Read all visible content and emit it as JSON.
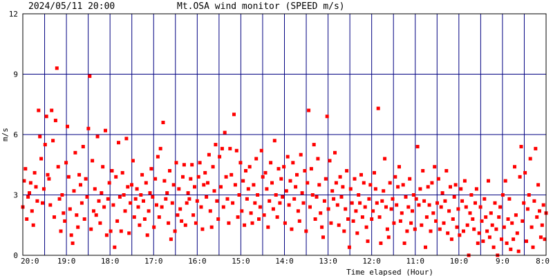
{
  "header": {
    "timestamp": "2024/05/11 20:00",
    "title": "Mt.OSA wind monitor (SPEED m/s)"
  },
  "chart_data": {
    "type": "scatter",
    "title": "Mt.OSA wind monitor (SPEED m/s)",
    "xlabel": "Time elapsed (Hour)",
    "ylabel": "m/s",
    "x_ticks": [
      "20:0",
      "19:0",
      "18:0",
      "17:0",
      "16:0",
      "15:0",
      "14:0",
      "13:0",
      "12:0",
      "11:0",
      "10:0",
      "9:0",
      "8:0"
    ],
    "y_ticks": [
      "0",
      "3",
      "6",
      "9",
      "12"
    ],
    "xlim": [
      0,
      12
    ],
    "ylim": [
      0,
      12
    ],
    "grid": true,
    "colors": {
      "points": "#ff0000",
      "grid": "#000080",
      "axis": "#000000"
    },
    "series": [
      {
        "values": [
          2.4,
          3.7,
          4.3,
          1.8,
          2.9,
          3.1,
          3.6,
          2.2,
          1.5,
          4.1,
          3.4,
          2.7,
          7.2,
          5.9,
          4.8,
          2.6,
          3.3,
          5.5,
          6.9,
          4.0,
          3.8,
          2.5,
          7.2,
          5.7,
          1.9,
          6.7,
          9.3,
          4.4,
          2.8,
          1.2,
          3.0,
          2.1,
          1.7,
          4.6,
          6.4,
          3.9,
          2.3,
          1.0,
          0.6,
          3.2,
          5.1,
          2.0,
          1.4,
          4.0,
          3.5,
          2.6,
          5.4,
          1.8,
          3.8,
          2.9,
          6.3,
          8.9,
          1.3,
          4.7,
          2.2,
          3.3,
          2.0,
          5.9,
          2.7,
          1.6,
          3.1,
          4.4,
          2.4,
          6.2,
          1.0,
          2.8,
          3.6,
          1.2,
          4.2,
          2.5,
          0.4,
          3.9,
          1.7,
          5.6,
          2.9,
          1.2,
          4.1,
          3.0,
          2.2,
          5.8,
          3.4,
          1.1,
          2.6,
          3.5,
          4.7,
          1.9,
          2.8,
          3.3,
          2.4,
          1.5,
          3.0,
          4.0,
          2.7,
          1.8,
          3.6,
          1.0,
          2.2,
          3.1,
          4.3,
          2.9,
          1.4,
          3.8,
          2.5,
          4.9,
          1.9,
          5.3,
          2.4,
          6.6,
          3.7,
          2.8,
          3.1,
          1.6,
          4.2,
          0.8,
          2.6,
          3.5,
          1.2,
          4.6,
          2.0,
          3.3,
          2.3,
          1.7,
          3.9,
          4.5,
          1.5,
          2.6,
          3.1,
          2.8,
          3.8,
          4.5,
          2.0,
          3.4,
          1.6,
          2.7,
          3.9,
          4.6,
          2.4,
          1.3,
          3.5,
          4.1,
          2.9,
          3.6,
          5.0,
          2.2,
          1.4,
          4.4,
          3.2,
          5.5,
          2.7,
          1.8,
          4.9,
          3.4,
          5.3,
          2.4,
          6.1,
          3.9,
          2.8,
          1.6,
          5.3,
          4.0,
          2.6,
          7.0,
          3.5,
          5.2,
          1.9,
          3.0,
          4.6,
          2.2,
          3.7,
          1.5,
          4.2,
          2.8,
          3.3,
          4.4,
          2.1,
          1.6,
          3.5,
          2.6,
          4.8,
          3.0,
          1.8,
          2.4,
          5.2,
          3.9,
          2.0,
          4.1,
          3.3,
          1.4,
          2.7,
          4.6,
          3.6,
          2.3,
          5.7,
          3.0,
          1.9,
          4.3,
          2.6,
          3.8,
          2.9,
          4.4,
          1.6,
          3.2,
          4.9,
          2.5,
          3.7,
          1.3,
          4.6,
          2.8,
          3.4,
          4.0,
          2.2,
          1.7,
          5.0,
          3.1,
          2.6,
          4.2,
          1.2,
          3.6,
          7.2,
          2.4,
          4.3,
          3.0,
          5.5,
          1.8,
          2.9,
          4.8,
          3.5,
          2.1,
          1.4,
          0.9,
          2.7,
          3.8,
          6.9,
          2.3,
          4.7,
          1.6,
          3.2,
          2.8,
          5.1,
          3.6,
          2.5,
          1.5,
          3.9,
          2.9,
          3.4,
          1.2,
          2.3,
          4.2,
          1.8,
          0.4,
          3.3,
          2.6,
          1.7,
          3.8,
          2.2,
          1.1,
          3.0,
          2.6,
          4.0,
          1.9,
          3.6,
          2.4,
          1.4,
          0.7,
          2.8,
          3.5,
          1.8,
          2.2,
          4.1,
          3.3,
          2.6,
          7.3,
          1.9,
          0.6,
          2.7,
          3.2,
          4.8,
          2.4,
          1.3,
          0.9,
          3.6,
          2.3,
          2.8,
          1.6,
          3.9,
          2.5,
          3.4,
          4.4,
          1.7,
          2.1,
          3.5,
          0.6,
          2.9,
          1.2,
          2.4,
          3.8,
          1.6,
          2.2,
          3.0,
          1.3,
          2.8,
          5.4,
          2.5,
          3.3,
          1.5,
          4.2,
          2.7,
          0.4,
          1.9,
          3.4,
          2.5,
          1.2,
          3.6,
          2.1,
          4.4,
          1.7,
          2.6,
          3.8,
          1.3,
          2.4,
          3.1,
          1.6,
          2.7,
          4.2,
          1.1,
          2.2,
          3.4,
          0.8,
          1.8,
          2.9,
          3.5,
          1.4,
          2.3,
          1.0,
          3.3,
          2.7,
          1.2,
          3.7,
          2.4,
          1.5,
          0.0,
          2.1,
          3.0,
          1.8,
          1.3,
          2.6,
          3.3,
          0.6,
          1.1,
          2.4,
          1.7,
          0.7,
          2.8,
          1.9,
          1.2,
          3.7,
          0.9,
          2.1,
          1.5,
          0.4,
          2.6,
          1.3,
          0.0,
          1.9,
          2.4,
          0.8,
          3.0,
          1.4,
          3.7,
          0.6,
          1.8,
          2.8,
          0.3,
          1.6,
          0.8,
          4.4,
          2.0,
          1.1,
          0.2,
          3.9,
          5.4,
          1.7,
          2.6,
          4.1,
          0.7,
          2.3,
          3.0,
          4.8,
          1.4,
          0.4,
          2.7,
          5.3,
          1.9,
          3.5,
          2.2,
          0.9,
          1.5,
          2.5,
          0.8,
          2.1
        ]
      }
    ]
  }
}
